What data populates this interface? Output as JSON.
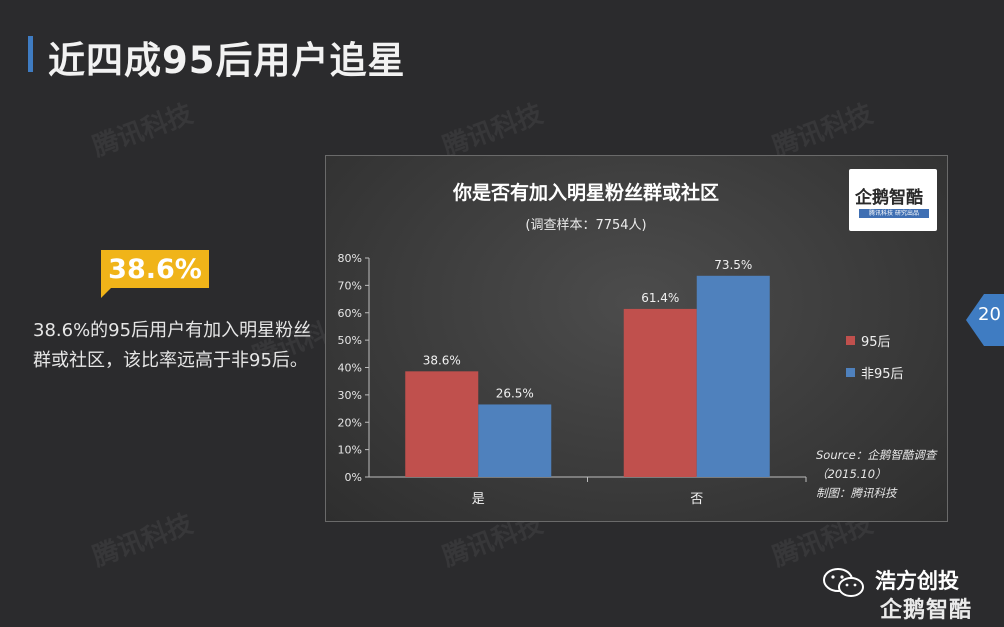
{
  "page": {
    "title": "近四成95后用户追星",
    "callout_value": "38.6%",
    "description": "38.6%的95后用户有加入明星粉丝群或社区，该比率远高于非95后。",
    "watermark_text": "腾讯科技",
    "page_number": "20",
    "brand_wechat": "浩方创投",
    "brand_bottom": "企鹅智酷"
  },
  "logo": {
    "text": "企鹅智酷",
    "strip_left": "腾讯科技",
    "strip_right": "研究出品"
  },
  "colors": {
    "series_95": "#c0504d",
    "series_non95": "#4f81bd",
    "accent": "#3f7cc2",
    "callout": "#f0b419"
  },
  "chart_data": {
    "type": "bar",
    "title": "你是否有加入明星粉丝群或社区",
    "subtitle": "(调查样本：7754人)",
    "categories": [
      "是",
      "否"
    ],
    "series": [
      {
        "name": "95后",
        "values": [
          38.6,
          61.4
        ],
        "labels": [
          "38.6%",
          "61.4%"
        ]
      },
      {
        "name": "非95后",
        "values": [
          26.5,
          73.5
        ],
        "labels": [
          "26.5%",
          "73.5%"
        ]
      }
    ],
    "ylim": [
      0,
      80
    ],
    "yticks": [
      "0%",
      "10%",
      "20%",
      "30%",
      "40%",
      "50%",
      "60%",
      "70%",
      "80%"
    ],
    "grid": false,
    "legend_position": "right",
    "source_lines": [
      "Source：企鹅智酷调查",
      "（2015.10）",
      "制图：腾讯科技"
    ]
  }
}
